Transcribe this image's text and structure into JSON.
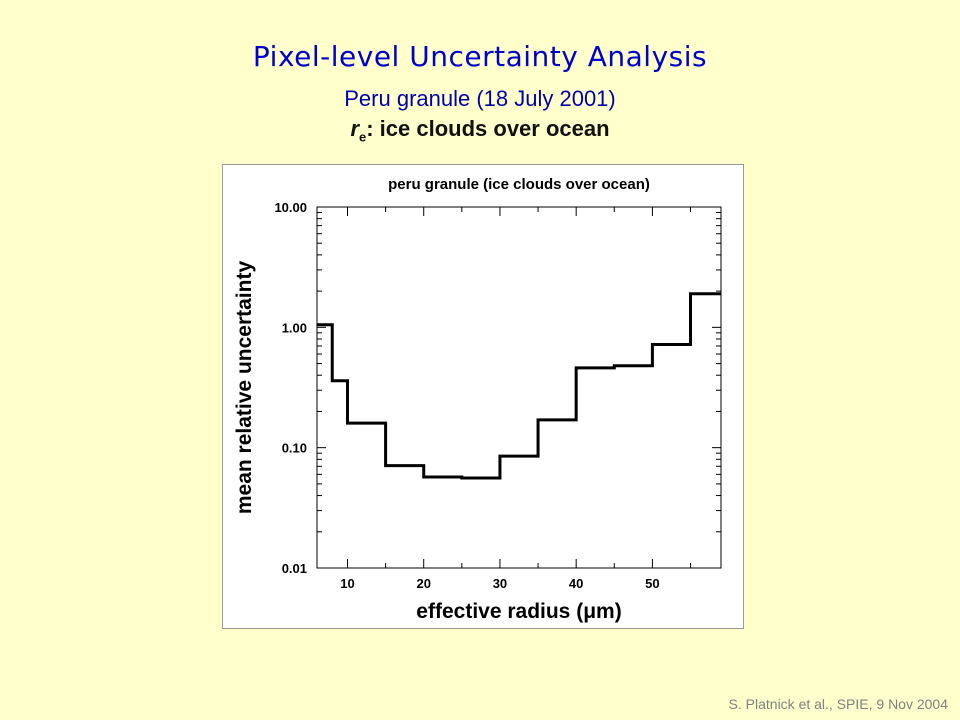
{
  "slide": {
    "title": "Pixel-level Uncertainty Analysis",
    "subtitle": "Peru granule (18 July 2001)",
    "heading_symbol": "r",
    "heading_subscript": "e",
    "heading_text": ": ice clouds over ocean",
    "credit": "S. Platnick et al., SPIE, 9 Nov  2004"
  },
  "chart_data": {
    "type": "line",
    "style": "step",
    "title": "peru granule (ice clouds over ocean)",
    "xlabel": "effective radius (μm)",
    "ylabel": "mean relative uncertainty",
    "xlim": [
      6,
      59
    ],
    "ylim": [
      0.01,
      10.0
    ],
    "yscale": "log",
    "x_tick_labels": [
      "10",
      "20",
      "30",
      "40",
      "50"
    ],
    "x_ticks": [
      10,
      20,
      30,
      40,
      50
    ],
    "y_tick_labels": [
      "10.00",
      "1.00",
      "0.10",
      "0.01"
    ],
    "y_ticks": [
      10.0,
      1.0,
      0.1,
      0.01
    ],
    "grid": false,
    "color": "#000000",
    "series": [
      {
        "bins": [
          {
            "x_start": 6,
            "x_end": 8,
            "y": 1.05
          },
          {
            "x_start": 8,
            "x_end": 10,
            "y": 0.36
          },
          {
            "x_start": 10,
            "x_end": 15,
            "y": 0.16
          },
          {
            "x_start": 15,
            "x_end": 20,
            "y": 0.071
          },
          {
            "x_start": 20,
            "x_end": 25,
            "y": 0.057
          },
          {
            "x_start": 25,
            "x_end": 30,
            "y": 0.056
          },
          {
            "x_start": 30,
            "x_end": 35,
            "y": 0.085
          },
          {
            "x_start": 35,
            "x_end": 40,
            "y": 0.17
          },
          {
            "x_start": 40,
            "x_end": 45,
            "y": 0.46
          },
          {
            "x_start": 45,
            "x_end": 50,
            "y": 0.48
          },
          {
            "x_start": 50,
            "x_end": 55,
            "y": 0.72
          },
          {
            "x_start": 55,
            "x_end": 59,
            "y": 1.9
          }
        ]
      }
    ]
  }
}
